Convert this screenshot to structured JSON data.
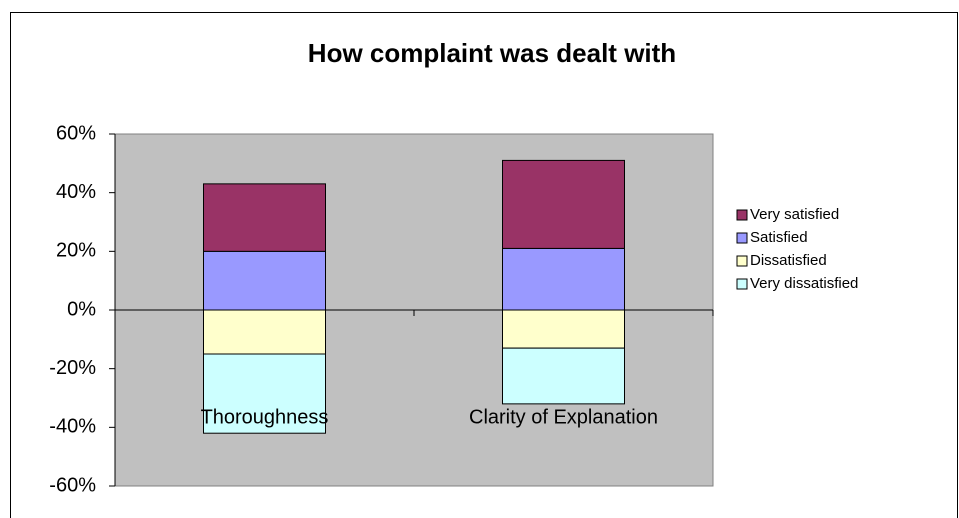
{
  "chart_data": {
    "type": "diverging_stacked_bar",
    "title": "How complaint was dealt with",
    "categories": [
      "Thoroughness",
      "Clarity of Explanation"
    ],
    "series": [
      {
        "name": "Very satisfied",
        "color": "#993366",
        "values": [
          23,
          30
        ]
      },
      {
        "name": "Satisfied",
        "color": "#9999ff",
        "values": [
          20,
          21
        ]
      },
      {
        "name": "Dissatisfied",
        "color": "#ffffcc",
        "values": [
          -15,
          -13
        ]
      },
      {
        "name": "Very dissatisfied",
        "color": "#ccffff",
        "values": [
          -27,
          -19
        ]
      }
    ],
    "ylim": [
      -60,
      60
    ],
    "yticks": [
      {
        "value": -60,
        "label": "-60%"
      },
      {
        "value": -40,
        "label": "-40%"
      },
      {
        "value": -20,
        "label": "-20%"
      },
      {
        "value": 0,
        "label": "0%"
      },
      {
        "value": 20,
        "label": "20%"
      },
      {
        "value": 40,
        "label": "40%"
      },
      {
        "value": 60,
        "label": "60%"
      }
    ],
    "plot_background": "#c0c0c0",
    "legend": "right"
  }
}
